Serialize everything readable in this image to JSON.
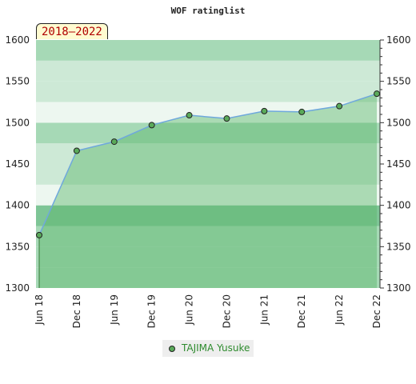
{
  "period": "2018–2022",
  "chart_data": {
    "type": "area",
    "title": "WOF ratinglist",
    "categories": [
      "Jun 18",
      "Dec 18",
      "Jun 19",
      "Dec 19",
      "Jun 20",
      "Dec 20",
      "Jun 21",
      "Dec 21",
      "Jun 22",
      "Dec 22"
    ],
    "series": [
      {
        "name": "TAJIMA Yusuke",
        "values": [
          1364,
          1466,
          1477,
          1497,
          1509,
          1505,
          1514,
          1513,
          1520,
          1535
        ]
      }
    ],
    "ylim": [
      1300,
      1600
    ],
    "yticks": [
      1300,
      1350,
      1400,
      1450,
      1500,
      1550,
      1600
    ],
    "xlabel": "",
    "ylabel": "",
    "legend_position": "bottom-center",
    "colors": {
      "line": "#6fa8dc",
      "fill": "#5ab56a",
      "marker": "#5aaa5a",
      "legend_text": "#2e8b2e",
      "band_dark": "#7ec596",
      "band_mid": "#a6d9b6",
      "band_light": "#cde9d6",
      "band_lightest": "#edf7f0"
    }
  }
}
